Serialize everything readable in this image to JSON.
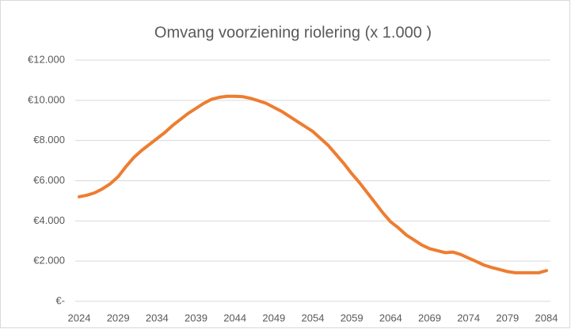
{
  "chart_data": {
    "type": "line",
    "title": "Omvang voorziening riolering (x 1.000 )",
    "x": [
      2024,
      2025,
      2026,
      2027,
      2028,
      2029,
      2030,
      2031,
      2032,
      2033,
      2034,
      2035,
      2036,
      2037,
      2038,
      2039,
      2040,
      2041,
      2042,
      2043,
      2044,
      2045,
      2046,
      2047,
      2048,
      2049,
      2050,
      2051,
      2052,
      2053,
      2054,
      2055,
      2056,
      2057,
      2058,
      2059,
      2060,
      2061,
      2062,
      2063,
      2064,
      2065,
      2066,
      2067,
      2068,
      2069,
      2070,
      2071,
      2072,
      2073,
      2074,
      2075,
      2076,
      2077,
      2078,
      2079,
      2080,
      2081,
      2082,
      2083,
      2084
    ],
    "series": [
      {
        "color": "#ed7d31",
        "values": [
          5200,
          5280,
          5400,
          5600,
          5850,
          6200,
          6700,
          7150,
          7500,
          7800,
          8100,
          8400,
          8750,
          9050,
          9350,
          9600,
          9850,
          10050,
          10150,
          10200,
          10200,
          10180,
          10100,
          9980,
          9850,
          9650,
          9450,
          9200,
          8950,
          8700,
          8450,
          8100,
          7750,
          7300,
          6850,
          6350,
          5900,
          5400,
          4900,
          4400,
          3950,
          3650,
          3300,
          3050,
          2800,
          2620,
          2520,
          2420,
          2450,
          2330,
          2150,
          1980,
          1800,
          1680,
          1580,
          1480,
          1420,
          1420,
          1420,
          1420,
          1530
        ]
      }
    ],
    "xlim": [
      2024,
      2084
    ],
    "xticks": [
      2024,
      2029,
      2034,
      2039,
      2044,
      2049,
      2054,
      2059,
      2064,
      2069,
      2074,
      2079,
      2084
    ],
    "ylim": [
      0,
      12000
    ],
    "yticks": [
      {
        "value": 0,
        "label": "€-"
      },
      {
        "value": 2000,
        "label": "€2.000"
      },
      {
        "value": 4000,
        "label": "€4.000"
      },
      {
        "value": 6000,
        "label": "€6.000"
      },
      {
        "value": 8000,
        "label": "€8.000"
      },
      {
        "value": 10000,
        "label": "€10.000"
      },
      {
        "value": 12000,
        "label": "€12.000"
      }
    ],
    "grid": true
  }
}
